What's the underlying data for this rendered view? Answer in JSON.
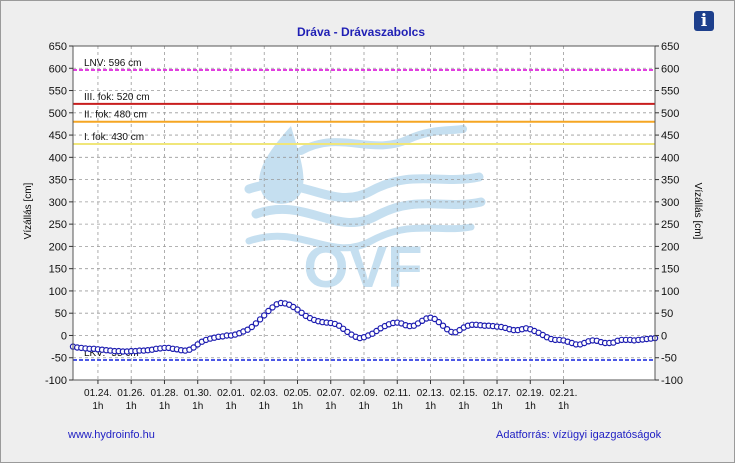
{
  "colors": {
    "frame_bg": "#eeeeee",
    "plot_bg": "#ffffff",
    "title": "#1f1fb5",
    "series": "#1c1cb0",
    "marker_fill": "#ffffff",
    "lnv": "#e23ee0",
    "fok3": "#c81e1e",
    "fok2": "#f5a623",
    "fok1": "#f0e67a",
    "lkv": "#4c58e6",
    "watermark": "#c5dff0"
  },
  "watermark_text": "OVF",
  "footer": {
    "left_link": "www.hydroinfo.hu",
    "right_text": "Adatforrás: vízügyi igazgatóságok"
  },
  "chart_data": {
    "type": "line",
    "title": "Dráva - Drávaszabolcs",
    "ylabel": "Vízállás [cm]",
    "ylabel_right": "Vízállás [cm]",
    "xlabel": "",
    "ylim": [
      -100,
      650
    ],
    "yticks": [
      -100,
      -50,
      0,
      50,
      100,
      150,
      200,
      250,
      300,
      350,
      400,
      450,
      500,
      550,
      600,
      650
    ],
    "grid": true,
    "x_start": "01.22. 12h",
    "x_end": "02.21. 12h",
    "x_step_hours": 6,
    "x_ticks": [
      {
        "label": "01.24.",
        "sublabel": "1h"
      },
      {
        "label": "01.26.",
        "sublabel": "1h"
      },
      {
        "label": "01.28.",
        "sublabel": "1h"
      },
      {
        "label": "01.30.",
        "sublabel": "1h"
      },
      {
        "label": "02.01.",
        "sublabel": "1h"
      },
      {
        "label": "02.03.",
        "sublabel": "1h"
      },
      {
        "label": "02.05.",
        "sublabel": "1h"
      },
      {
        "label": "02.07.",
        "sublabel": "1h"
      },
      {
        "label": "02.09.",
        "sublabel": "1h"
      },
      {
        "label": "02.11.",
        "sublabel": "1h"
      },
      {
        "label": "02.13.",
        "sublabel": "1h"
      },
      {
        "label": "02.15.",
        "sublabel": "1h"
      },
      {
        "label": "02.17.",
        "sublabel": "1h"
      },
      {
        "label": "02.19.",
        "sublabel": "1h"
      },
      {
        "label": "02.21.",
        "sublabel": "1h"
      }
    ],
    "reference_lines": [
      {
        "label": "LNV: 596 cm",
        "value": 596,
        "color_key": "lnv",
        "style": "dashed"
      },
      {
        "label": "III. fok: 520 cm",
        "value": 520,
        "color_key": "fok3",
        "style": "solid"
      },
      {
        "label": "II. fok: 480 cm",
        "value": 480,
        "color_key": "fok2",
        "style": "solid"
      },
      {
        "label": "I. fok: 430 cm",
        "value": 430,
        "color_key": "fok1",
        "style": "solid"
      },
      {
        "label": "LKV: -55 cm",
        "value": -55,
        "color_key": "lkv",
        "style": "dashed"
      }
    ],
    "series": [
      {
        "values": [
          -25,
          -27,
          -28,
          -29,
          -30,
          -30,
          -31,
          -32,
          -33,
          -34,
          -35,
          -35,
          -36,
          -36,
          -35,
          -35,
          -34,
          -34,
          -33,
          -32,
          -30,
          -29,
          -28,
          -28,
          -30,
          -31,
          -33,
          -34,
          -32,
          -27,
          -20,
          -14,
          -10,
          -7,
          -5,
          -3,
          -2,
          0,
          0,
          2,
          5,
          9,
          13,
          19,
          27,
          36,
          45,
          55,
          63,
          70,
          73,
          72,
          69,
          64,
          58,
          51,
          44,
          39,
          35,
          32,
          30,
          29,
          28,
          26,
          22,
          15,
          8,
          2,
          -3,
          -6,
          -4,
          0,
          4,
          10,
          16,
          21,
          25,
          28,
          29,
          27,
          23,
          21,
          22,
          27,
          33,
          38,
          40,
          37,
          30,
          22,
          14,
          8,
          7,
          12,
          18,
          22,
          24,
          24,
          23,
          22,
          22,
          21,
          20,
          19,
          17,
          14,
          12,
          12,
          14,
          16,
          14,
          10,
          6,
          1,
          -4,
          -8,
          -10,
          -10,
          -11,
          -14,
          -17,
          -20,
          -20,
          -17,
          -13,
          -11,
          -12,
          -15,
          -17,
          -17,
          -16,
          -12,
          -10,
          -10,
          -10,
          -11,
          -10,
          -9,
          -8,
          -7,
          -6
        ]
      }
    ]
  }
}
